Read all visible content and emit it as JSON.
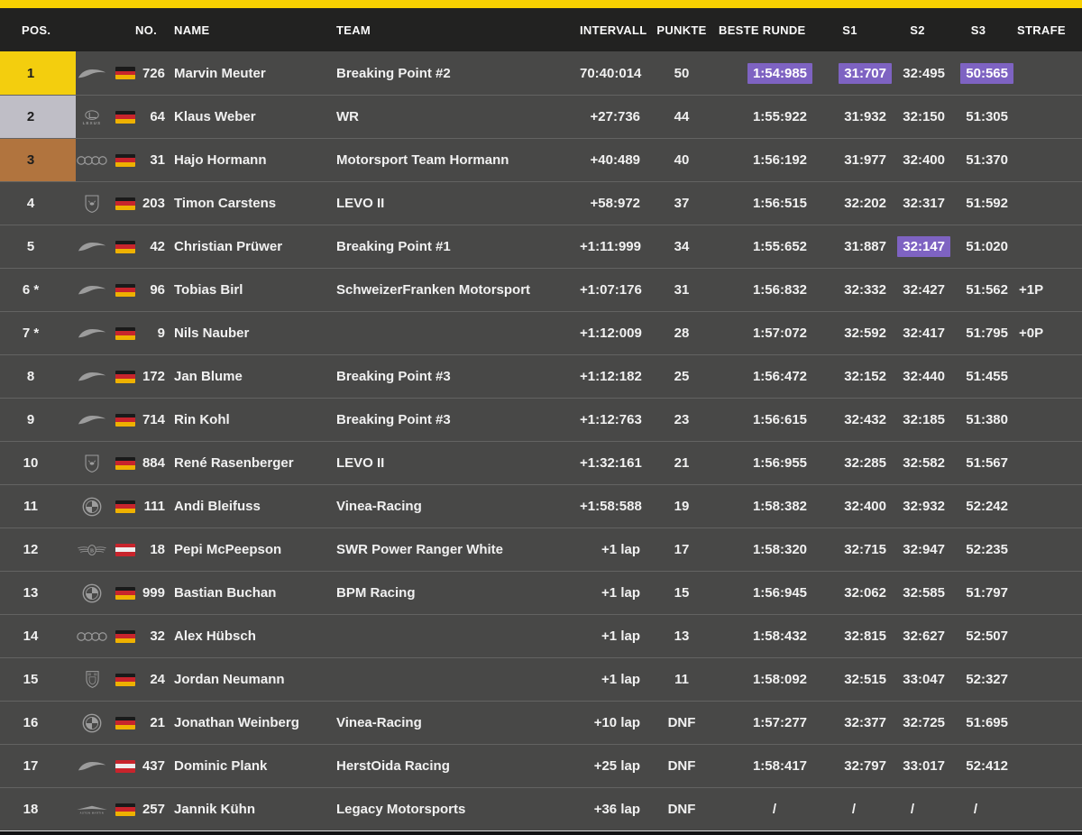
{
  "colors": {
    "accent_yellow": "#F8D001",
    "gold": "#F3CE0E",
    "silver": "#BFBEC6",
    "bronze": "#B1743E",
    "purple_highlight": "#7E63C2",
    "row_bg": "#484847",
    "header_bg": "#222221"
  },
  "table": {
    "headers": {
      "pos": "POS.",
      "no": "NO.",
      "name": "NAME",
      "team": "TEAM",
      "intervall": "INTERVALL",
      "punkte": "PUNKTE",
      "beste_runde": "BESTE RUNDE",
      "s1": "S1",
      "s2": "S2",
      "s3": "S3",
      "strafe": "STRAFE"
    },
    "rows": [
      {
        "pos": "1",
        "medal": "gold",
        "car": "mclaren",
        "flag": "de",
        "no": "726",
        "name": "Marvin Meuter",
        "team": "Breaking Point #2",
        "intervall": "70:40:014",
        "punkte": "50",
        "beste_runde": "1:54:985",
        "s1": "31:707",
        "s2": "32:495",
        "s3": "50:565",
        "strafe": "",
        "hl": [
          "beste_runde",
          "s1",
          "s3"
        ]
      },
      {
        "pos": "2",
        "medal": "silver",
        "car": "lexus",
        "flag": "de",
        "no": "64",
        "name": "Klaus Weber",
        "team": "WR",
        "intervall": "+27:736",
        "punkte": "44",
        "beste_runde": "1:55:922",
        "s1": "31:932",
        "s2": "32:150",
        "s3": "51:305",
        "strafe": "",
        "hl": []
      },
      {
        "pos": "3",
        "medal": "bronze",
        "car": "audi",
        "flag": "de",
        "no": "31",
        "name": "Hajo Hormann",
        "team": "Motorsport Team Hormann",
        "intervall": "+40:489",
        "punkte": "40",
        "beste_runde": "1:56:192",
        "s1": "31:977",
        "s2": "32:400",
        "s3": "51:370",
        "strafe": "",
        "hl": []
      },
      {
        "pos": "4",
        "medal": "",
        "car": "lamborghini",
        "flag": "de",
        "no": "203",
        "name": "Timon Carstens",
        "team": "LEVO II",
        "intervall": "+58:972",
        "punkte": "37",
        "beste_runde": "1:56:515",
        "s1": "32:202",
        "s2": "32:317",
        "s3": "51:592",
        "strafe": "",
        "hl": []
      },
      {
        "pos": "5",
        "medal": "",
        "car": "mclaren",
        "flag": "de",
        "no": "42",
        "name": "Christian Prüwer",
        "team": "Breaking Point #1",
        "intervall": "+1:11:999",
        "punkte": "34",
        "beste_runde": "1:55:652",
        "s1": "31:887",
        "s2": "32:147",
        "s3": "51:020",
        "strafe": "",
        "hl": [
          "s2"
        ]
      },
      {
        "pos": "6 *",
        "medal": "",
        "car": "mclaren",
        "flag": "de",
        "no": "96",
        "name": "Tobias Birl",
        "team": "SchweizerFranken Motorsport",
        "intervall": "+1:07:176",
        "punkte": "31",
        "beste_runde": "1:56:832",
        "s1": "32:332",
        "s2": "32:427",
        "s3": "51:562",
        "strafe": "+1P",
        "hl": []
      },
      {
        "pos": "7 *",
        "medal": "",
        "car": "mclaren",
        "flag": "de",
        "no": "9",
        "name": "Nils Nauber",
        "team": "",
        "intervall": "+1:12:009",
        "punkte": "28",
        "beste_runde": "1:57:072",
        "s1": "32:592",
        "s2": "32:417",
        "s3": "51:795",
        "strafe": "+0P",
        "hl": []
      },
      {
        "pos": "8",
        "medal": "",
        "car": "mclaren",
        "flag": "de",
        "no": "172",
        "name": "Jan Blume",
        "team": "Breaking Point #3",
        "intervall": "+1:12:182",
        "punkte": "25",
        "beste_runde": "1:56:472",
        "s1": "32:152",
        "s2": "32:440",
        "s3": "51:455",
        "strafe": "",
        "hl": []
      },
      {
        "pos": "9",
        "medal": "",
        "car": "mclaren",
        "flag": "de",
        "no": "714",
        "name": "Rin Kohl",
        "team": "Breaking Point #3",
        "intervall": "+1:12:763",
        "punkte": "23",
        "beste_runde": "1:56:615",
        "s1": "32:432",
        "s2": "32:185",
        "s3": "51:380",
        "strafe": "",
        "hl": []
      },
      {
        "pos": "10",
        "medal": "",
        "car": "lamborghini",
        "flag": "de",
        "no": "884",
        "name": "René Rasenberger",
        "team": "LEVO II",
        "intervall": "+1:32:161",
        "punkte": "21",
        "beste_runde": "1:56:955",
        "s1": "32:285",
        "s2": "32:582",
        "s3": "51:567",
        "strafe": "",
        "hl": []
      },
      {
        "pos": "11",
        "medal": "",
        "car": "bmw",
        "flag": "de",
        "no": "111",
        "name": "Andi Bleifuss",
        "team": "Vinea-Racing",
        "intervall": "+1:58:588",
        "punkte": "19",
        "beste_runde": "1:58:382",
        "s1": "32:400",
        "s2": "32:932",
        "s3": "52:242",
        "strafe": "",
        "hl": []
      },
      {
        "pos": "12",
        "medal": "",
        "car": "bentley",
        "flag": "at",
        "no": "18",
        "name": "Pepi McPeepson",
        "team": "SWR Power Ranger White",
        "intervall": "+1 lap",
        "punkte": "17",
        "beste_runde": "1:58:320",
        "s1": "32:715",
        "s2": "32:947",
        "s3": "52:235",
        "strafe": "",
        "hl": []
      },
      {
        "pos": "13",
        "medal": "",
        "car": "bmw",
        "flag": "de",
        "no": "999",
        "name": "Bastian Buchan",
        "team": "BPM Racing",
        "intervall": "+1 lap",
        "punkte": "15",
        "beste_runde": "1:56:945",
        "s1": "32:062",
        "s2": "32:585",
        "s3": "51:797",
        "strafe": "",
        "hl": []
      },
      {
        "pos": "14",
        "medal": "",
        "car": "audi",
        "flag": "de",
        "no": "32",
        "name": "Alex Hübsch",
        "team": "",
        "intervall": "+1 lap",
        "punkte": "13",
        "beste_runde": "1:58:432",
        "s1": "32:815",
        "s2": "32:627",
        "s3": "52:507",
        "strafe": "",
        "hl": []
      },
      {
        "pos": "15",
        "medal": "",
        "car": "porsche",
        "flag": "de",
        "no": "24",
        "name": "Jordan Neumann",
        "team": "",
        "intervall": "+1 lap",
        "punkte": "11",
        "beste_runde": "1:58:092",
        "s1": "32:515",
        "s2": "33:047",
        "s3": "52:327",
        "strafe": "",
        "hl": []
      },
      {
        "pos": "16",
        "medal": "",
        "car": "bmw",
        "flag": "de",
        "no": "21",
        "name": "Jonathan Weinberg",
        "team": "Vinea-Racing",
        "intervall": "+10 lap",
        "punkte": "DNF",
        "beste_runde": "1:57:277",
        "s1": "32:377",
        "s2": "32:725",
        "s3": "51:695",
        "strafe": "",
        "hl": []
      },
      {
        "pos": "17",
        "medal": "",
        "car": "mclaren",
        "flag": "at",
        "no": "437",
        "name": "Dominic Plank",
        "team": "HerstOida Racing",
        "intervall": "+25 lap",
        "punkte": "DNF",
        "beste_runde": "1:58:417",
        "s1": "32:797",
        "s2": "33:017",
        "s3": "52:412",
        "strafe": "",
        "hl": []
      },
      {
        "pos": "18",
        "medal": "",
        "car": "astonmartin",
        "flag": "de",
        "no": "257",
        "name": "Jannik Kühn",
        "team": "Legacy Motorsports",
        "intervall": "+36 lap",
        "punkte": "DNF",
        "beste_runde": "/",
        "s1": "/",
        "s2": "/",
        "s3": "/",
        "strafe": "",
        "hl": []
      }
    ]
  }
}
